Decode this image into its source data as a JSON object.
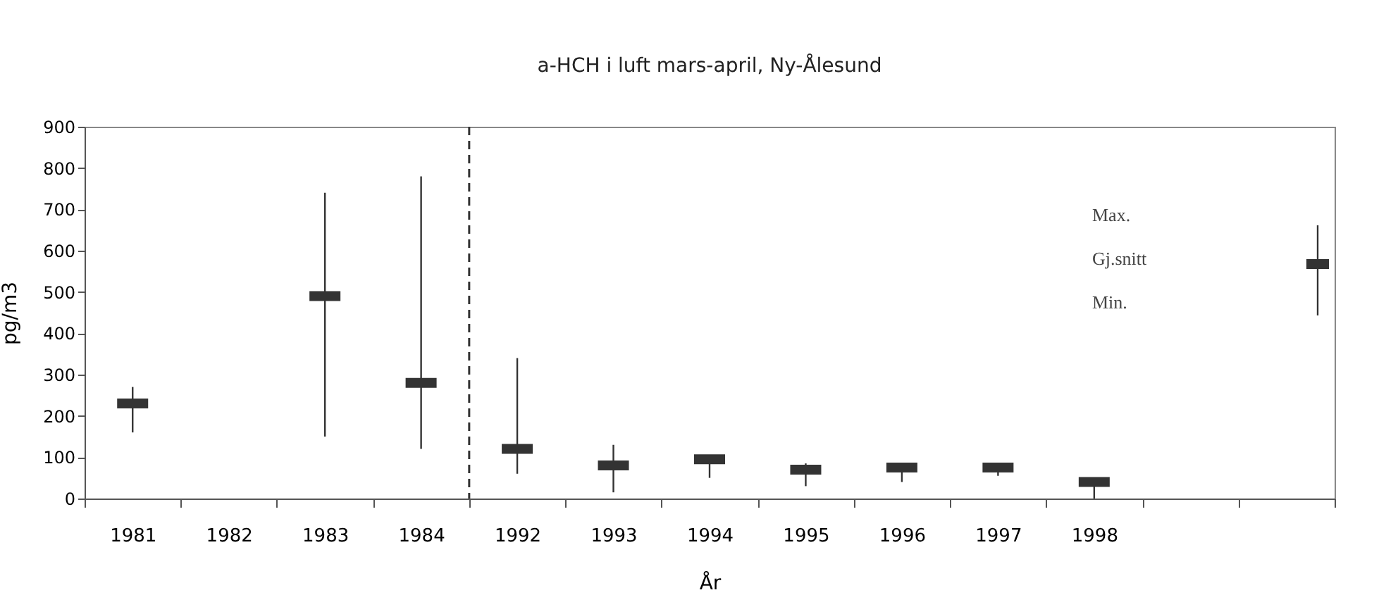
{
  "chart_data": {
    "type": "scatter",
    "title": "a-HCH i luft mars-april, Ny-Ålesund",
    "xlabel": "År",
    "ylabel": "pg/m3",
    "categories": [
      "1981",
      "1982",
      "1983",
      "1984",
      "1992",
      "1993",
      "1994",
      "1995",
      "1996",
      "1997",
      "1998",
      null,
      null
    ],
    "values": [
      230,
      null,
      490,
      280,
      120,
      80,
      95,
      70,
      75,
      75,
      40,
      null,
      null
    ],
    "errors": [
      [
        160,
        270
      ],
      null,
      [
        150,
        740
      ],
      [
        120,
        780
      ],
      [
        60,
        340
      ],
      [
        15,
        130
      ],
      [
        50,
        105
      ],
      [
        30,
        85
      ],
      [
        40,
        80
      ],
      [
        55,
        85
      ],
      [
        0,
        50
      ],
      null,
      null
    ],
    "color": "#333333",
    "ylim": [
      0,
      900
    ],
    "yticks": [
      0,
      100,
      200,
      300,
      400,
      500,
      600,
      700,
      800,
      900
    ],
    "grid": false,
    "ref_lines": [
      {
        "axis": "x",
        "value": "1992",
        "line_style": "dashed"
      }
    ],
    "annotations": [
      "Max.",
      "Gj.snitt",
      "Min."
    ]
  }
}
